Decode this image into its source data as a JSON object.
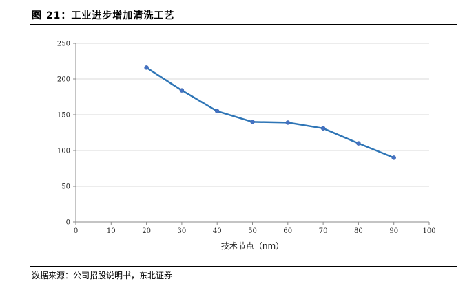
{
  "figure": {
    "title": "图 21：工业进步增加清洗工艺",
    "source": "数据来源：公司招股说明书，东北证券"
  },
  "chart_data": {
    "type": "line",
    "title": "",
    "xlabel": "技术节点（nm）",
    "ylabel": "",
    "xlim": [
      0,
      100
    ],
    "ylim": [
      0,
      250
    ],
    "xticks": [
      0,
      10,
      20,
      30,
      40,
      50,
      60,
      70,
      80,
      90,
      100
    ],
    "yticks": [
      0,
      50,
      100,
      150,
      200,
      250
    ],
    "grid": true,
    "legend": "none",
    "series": [
      {
        "color": "#2e75b6",
        "x": [
          20,
          30,
          40,
          50,
          60,
          70,
          80,
          90
        ],
        "y": [
          216,
          184,
          155,
          140,
          139,
          131,
          110,
          90
        ]
      }
    ]
  }
}
